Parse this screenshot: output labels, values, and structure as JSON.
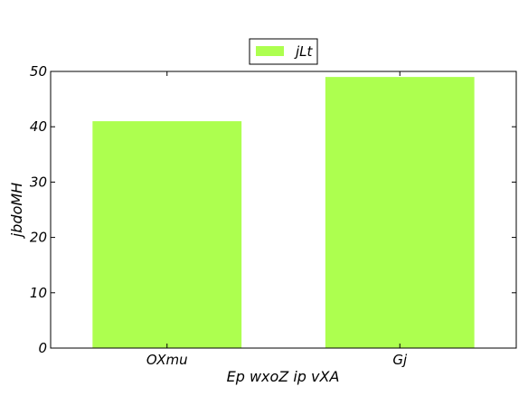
{
  "chart_data": {
    "type": "bar",
    "categories": [
      "OXmu",
      "Gj"
    ],
    "series": [
      {
        "name": "jLt",
        "values": [
          41,
          49
        ],
        "color": "#adff4f"
      }
    ],
    "xlabel": "Ep wxoZ ip vXA",
    "ylabel": "jbdoMH",
    "ylim": [
      0,
      50
    ],
    "yticks": [
      0,
      10,
      20,
      30,
      40,
      50
    ],
    "grid": false,
    "legend": "top-center"
  }
}
